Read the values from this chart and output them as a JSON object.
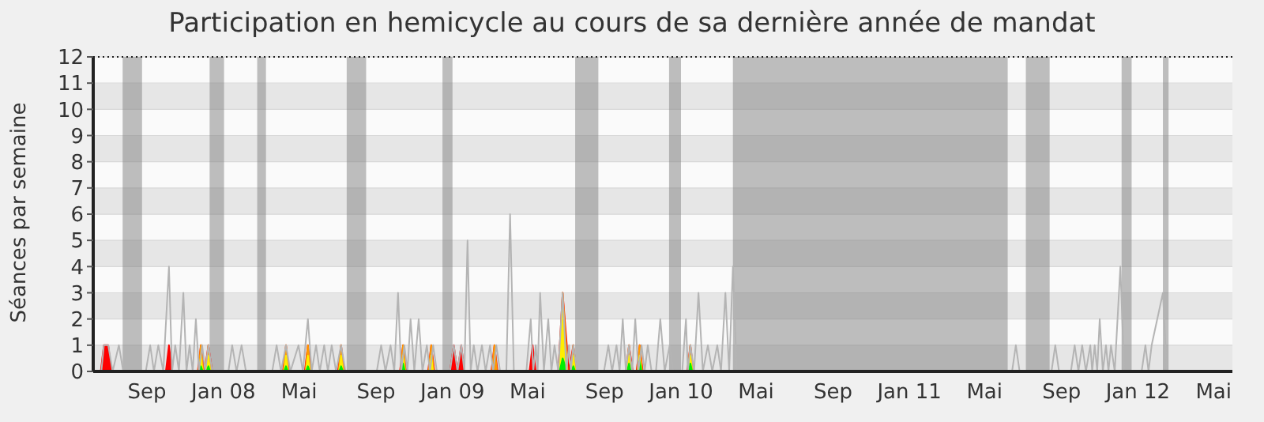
{
  "chart_data": {
    "type": "line",
    "title": "Participation en hemicycle au cours de sa dernière année de mandat",
    "ylabel": "Séances par semaine",
    "xlim": [
      "2007-06-07",
      "2012-05-31"
    ],
    "xticks": [
      {
        "value": "2007-09-01",
        "label": "Sep"
      },
      {
        "value": "2008-01-01",
        "label": "Jan 08"
      },
      {
        "value": "2008-05-01",
        "label": "Mai"
      },
      {
        "value": "2008-09-01",
        "label": "Sep"
      },
      {
        "value": "2009-01-01",
        "label": "Jan 09"
      },
      {
        "value": "2009-05-01",
        "label": "Mai"
      },
      {
        "value": "2009-09-01",
        "label": "Sep"
      },
      {
        "value": "2010-01-01",
        "label": "Jan 10"
      },
      {
        "value": "2010-05-01",
        "label": "Mai"
      },
      {
        "value": "2010-09-01",
        "label": "Sep"
      },
      {
        "value": "2011-01-01",
        "label": "Jan 11"
      },
      {
        "value": "2011-05-01",
        "label": "Mai"
      },
      {
        "value": "2011-09-01",
        "label": "Sep"
      },
      {
        "value": "2012-01-01",
        "label": "Jan 12"
      },
      {
        "value": "2012-05-01",
        "label": "Mai"
      }
    ],
    "ylim": [
      0,
      12
    ],
    "yticks": [
      0,
      1,
      2,
      3,
      4,
      5,
      6,
      7,
      8,
      9,
      10,
      11,
      12
    ],
    "grid": "y",
    "legend": false,
    "marker": "none",
    "bands": [
      {
        "axis": "x",
        "from": "2007-07-24",
        "to": "2007-08-24",
        "color": "#808080"
      },
      {
        "axis": "x",
        "from": "2007-12-10",
        "to": "2008-01-02",
        "color": "#808080"
      },
      {
        "axis": "x",
        "from": "2008-02-24",
        "to": "2008-03-09",
        "color": "#808080"
      },
      {
        "axis": "x",
        "from": "2008-07-16",
        "to": "2008-08-16",
        "color": "#808080"
      },
      {
        "axis": "x",
        "from": "2008-12-16",
        "to": "2009-01-01",
        "color": "#808080"
      },
      {
        "axis": "x",
        "from": "2009-07-16",
        "to": "2009-08-22",
        "color": "#808080"
      },
      {
        "axis": "x",
        "from": "2009-12-13",
        "to": "2010-01-01",
        "color": "#808080"
      },
      {
        "axis": "x",
        "from": "2010-03-25",
        "to": "2011-06-07",
        "color": "#808080"
      },
      {
        "axis": "x",
        "from": "2011-07-06",
        "to": "2011-08-13",
        "color": "#808080"
      },
      {
        "axis": "x",
        "from": "2011-12-06",
        "to": "2011-12-22",
        "color": "#808080"
      },
      {
        "axis": "x",
        "from": "2012-02-10",
        "to": "2012-02-19",
        "color": "#808080"
      }
    ],
    "series": [
      {
        "color": "#b4b4b4",
        "x": [
          "2007-06-07",
          "2007-06-20",
          "2007-06-24",
          "2007-07-01",
          "2007-07-08",
          "2007-07-18",
          "2007-07-25",
          "2007-08-30",
          "2007-09-06",
          "2007-09-12",
          "2007-09-19",
          "2007-09-27",
          "2007-10-06",
          "2007-10-11",
          "2007-10-16",
          "2007-10-22",
          "2007-10-29",
          "2007-11-03",
          "2007-11-08",
          "2007-11-13",
          "2007-11-18",
          "2007-11-23",
          "2007-11-28",
          "2007-12-03",
          "2007-12-08",
          "2007-12-14",
          "2008-01-09",
          "2008-01-15",
          "2008-01-22",
          "2008-01-30",
          "2008-02-06",
          "2008-03-19",
          "2008-03-26",
          "2008-04-02",
          "2008-04-10",
          "2008-04-17",
          "2008-04-30",
          "2008-05-07",
          "2008-05-15",
          "2008-05-21",
          "2008-05-28",
          "2008-06-03",
          "2008-06-10",
          "2008-06-16",
          "2008-06-22",
          "2008-06-29",
          "2008-07-07",
          "2008-07-14",
          "2008-09-02",
          "2008-09-09",
          "2008-09-16",
          "2008-09-24",
          "2008-09-30",
          "2008-10-06",
          "2008-10-11",
          "2008-10-16",
          "2008-10-21",
          "2008-10-26",
          "2008-11-01",
          "2008-11-08",
          "2008-11-14",
          "2008-11-21",
          "2008-11-26",
          "2008-12-01",
          "2008-12-07",
          "2008-12-28",
          "2009-01-03",
          "2009-01-09",
          "2009-01-15",
          "2009-01-20",
          "2009-01-25",
          "2009-01-30",
          "2009-02-04",
          "2009-02-10",
          "2009-02-17",
          "2009-02-23",
          "2009-03-02",
          "2009-03-07",
          "2009-03-12",
          "2009-03-18",
          "2009-03-28",
          "2009-04-03",
          "2009-04-09",
          "2009-04-29",
          "2009-05-06",
          "2009-05-10",
          "2009-05-14",
          "2009-05-17",
          "2009-05-21",
          "2009-05-27",
          "2009-06-03",
          "2009-06-08",
          "2009-06-13",
          "2009-06-19",
          "2009-06-26",
          "2009-07-02",
          "2009-07-06",
          "2009-07-09",
          "2009-07-13",
          "2009-07-19",
          "2009-08-31",
          "2009-09-07",
          "2009-09-13",
          "2009-09-20",
          "2009-09-25",
          "2009-09-30",
          "2009-10-05",
          "2009-10-10",
          "2009-10-15",
          "2009-10-20",
          "2009-10-25",
          "2009-10-30",
          "2009-11-04",
          "2009-11-09",
          "2009-11-15",
          "2009-11-22",
          "2009-11-29",
          "2009-12-06",
          "2009-12-14",
          "2009-12-20",
          "2010-01-03",
          "2010-01-09",
          "2010-01-12",
          "2010-01-16",
          "2010-01-22",
          "2010-01-29",
          "2010-02-05",
          "2010-02-13",
          "2010-02-20",
          "2010-02-28",
          "2010-03-06",
          "2010-03-13",
          "2010-03-19",
          "2010-03-25",
          "2010-03-31",
          "2011-06-14",
          "2011-06-20",
          "2011-06-26",
          "2011-08-16",
          "2011-08-22",
          "2011-08-28",
          "2011-09-16",
          "2011-09-22",
          "2011-09-28",
          "2011-10-04",
          "2011-10-10",
          "2011-10-17",
          "2011-10-20",
          "2011-10-24",
          "2011-10-28",
          "2011-11-01",
          "2011-11-06",
          "2011-11-11",
          "2011-11-15",
          "2011-11-19",
          "2011-11-25",
          "2011-12-04",
          "2011-12-10",
          "2012-01-07",
          "2012-01-13",
          "2012-01-18",
          "2012-01-23",
          "2012-02-10",
          "2012-02-16",
          "2012-05-31"
        ],
        "values": [
          0,
          0,
          1,
          1,
          0,
          1,
          0,
          0,
          1,
          0,
          1,
          0,
          4,
          0,
          1,
          0,
          3,
          0,
          1,
          0,
          2,
          0,
          1,
          0,
          1,
          0,
          0,
          1,
          0,
          1,
          0,
          0,
          1,
          0,
          1,
          0,
          1,
          0,
          2,
          0,
          1,
          0,
          1,
          0,
          1,
          0,
          1,
          0,
          0,
          1,
          0,
          1,
          0,
          3,
          0,
          1,
          0,
          2,
          0,
          2,
          0,
          1,
          0,
          1,
          0,
          0,
          1,
          0,
          1,
          0,
          5,
          0,
          1,
          0,
          1,
          0,
          1,
          0,
          1,
          0,
          0,
          6,
          0,
          0,
          2,
          0,
          1,
          0,
          3,
          0,
          2,
          0,
          1,
          0,
          3,
          0,
          1,
          0,
          1,
          0,
          0,
          1,
          0,
          1,
          0,
          2,
          0,
          1,
          0,
          2,
          0,
          1,
          0,
          1,
          0,
          0,
          2,
          0,
          1,
          0,
          0,
          2,
          0,
          1,
          0,
          3,
          0,
          1,
          0,
          1,
          0,
          3,
          0,
          4,
          0,
          0,
          1,
          0,
          0,
          1,
          0,
          0,
          1,
          0,
          1,
          0,
          1,
          0,
          1,
          0,
          2,
          0,
          1,
          0,
          1,
          0,
          4,
          0,
          0,
          1,
          0,
          1,
          3,
          0,
          0
        ]
      },
      {
        "type": "area",
        "color": "#ff0000",
        "x": [
          "2007-06-19",
          "2007-06-24",
          "2007-07-01",
          "2007-07-06",
          "2007-10-01",
          "2007-10-06",
          "2007-10-11",
          "2007-11-21",
          "2007-11-26",
          "2007-12-02",
          "2007-12-08",
          "2007-12-14",
          "2008-04-05",
          "2008-04-10",
          "2008-04-15",
          "2008-05-10",
          "2008-05-15",
          "2008-05-20",
          "2008-07-02",
          "2008-07-07",
          "2008-07-12",
          "2008-10-09",
          "2008-10-14",
          "2008-10-19",
          "2008-11-23",
          "2008-11-28",
          "2008-12-03",
          "2008-12-28",
          "2009-01-03",
          "2009-01-09",
          "2009-01-15",
          "2009-01-20",
          "2009-03-04",
          "2009-03-09",
          "2009-03-14",
          "2009-05-04",
          "2009-05-09",
          "2009-05-14",
          "2009-06-19",
          "2009-06-26",
          "2009-07-06",
          "2009-07-13",
          "2009-07-18",
          "2009-10-05",
          "2009-10-10",
          "2009-10-16",
          "2009-10-22",
          "2009-10-27",
          "2009-11-01",
          "2010-01-11",
          "2010-01-16",
          "2010-01-21"
        ],
        "values": [
          0,
          1,
          1,
          0,
          0,
          1,
          0,
          0,
          1,
          0,
          1,
          0,
          0,
          1,
          0,
          0,
          1,
          0,
          0,
          1,
          0,
          0,
          1,
          0,
          0,
          1,
          0,
          0,
          1,
          0,
          1,
          0,
          0,
          1,
          0,
          0,
          1,
          0,
          0,
          3,
          0,
          1,
          0,
          0,
          1,
          0,
          0,
          1,
          0,
          0,
          1,
          0
        ]
      },
      {
        "type": "area",
        "color": "#ff9900",
        "x": [
          "2007-11-22",
          "2007-11-26",
          "2007-11-30",
          "2007-12-04",
          "2007-12-08",
          "2007-12-12",
          "2008-04-06",
          "2008-04-10",
          "2008-04-14",
          "2008-05-11",
          "2008-05-15",
          "2008-05-19",
          "2008-07-03",
          "2008-07-07",
          "2008-07-11",
          "2008-10-10",
          "2008-10-14",
          "2008-10-18",
          "2008-11-24",
          "2008-11-28",
          "2008-12-02",
          "2009-03-05",
          "2009-03-09",
          "2009-03-13",
          "2009-06-20",
          "2009-06-26",
          "2009-07-04",
          "2009-07-09",
          "2009-07-13",
          "2009-07-17",
          "2009-10-06",
          "2009-10-10",
          "2009-10-14",
          "2009-10-23",
          "2009-10-27",
          "2009-10-31",
          "2010-01-12",
          "2010-01-16",
          "2010-01-20"
        ],
        "values": [
          0,
          1,
          0,
          0,
          1,
          0,
          0,
          1,
          0,
          0,
          1,
          0,
          0,
          1,
          0,
          0,
          1,
          0,
          0,
          1,
          0,
          0,
          1,
          0,
          0,
          3,
          0,
          0,
          1,
          0,
          0,
          1,
          0,
          0,
          1,
          0,
          0,
          1,
          0
        ]
      },
      {
        "type": "area",
        "color": "#ffee00",
        "x": [
          "2007-11-23",
          "2007-11-26",
          "2007-11-29",
          "2007-12-05",
          "2007-12-08",
          "2007-12-11",
          "2008-04-07",
          "2008-04-10",
          "2008-04-13",
          "2008-05-12",
          "2008-05-15",
          "2008-05-18",
          "2008-07-04",
          "2008-07-07",
          "2008-07-10",
          "2008-10-11",
          "2008-10-14",
          "2008-10-17",
          "2008-11-25",
          "2008-11-28",
          "2008-12-01",
          "2009-06-21",
          "2009-06-26",
          "2009-07-03",
          "2009-07-10",
          "2009-07-13",
          "2009-07-16",
          "2009-10-07",
          "2009-10-10",
          "2009-10-13",
          "2009-10-24",
          "2009-10-27",
          "2009-10-30",
          "2010-01-13",
          "2010-01-16",
          "2010-01-19"
        ],
        "values": [
          0,
          0.6,
          0,
          0,
          0.6,
          0,
          0,
          0.6,
          0,
          0,
          0.6,
          0,
          0,
          0.6,
          0,
          0,
          0.6,
          0,
          0,
          0.6,
          0,
          0,
          2.5,
          0,
          0,
          0.6,
          0,
          0,
          0.6,
          0,
          0,
          0.6,
          0,
          0,
          0.6,
          0
        ]
      },
      {
        "type": "area",
        "color": "#00ee00",
        "x": [
          "2007-11-23",
          "2007-11-26",
          "2007-11-29",
          "2007-12-05",
          "2007-12-08",
          "2007-12-11",
          "2008-04-07",
          "2008-04-10",
          "2008-04-13",
          "2008-05-12",
          "2008-05-15",
          "2008-05-18",
          "2008-07-04",
          "2008-07-07",
          "2008-07-10",
          "2008-10-11",
          "2008-10-14",
          "2008-10-17",
          "2009-06-21",
          "2009-06-26",
          "2009-07-03",
          "2009-07-10",
          "2009-07-13",
          "2009-07-16",
          "2009-10-07",
          "2009-10-10",
          "2009-10-13",
          "2009-10-24",
          "2009-10-27",
          "2009-10-30",
          "2010-01-13",
          "2010-01-16",
          "2010-01-19"
        ],
        "values": [
          0,
          0.2,
          0,
          0,
          0.2,
          0,
          0,
          0.2,
          0,
          0,
          0.2,
          0,
          0,
          0.2,
          0,
          0,
          0.3,
          0,
          0,
          0.5,
          0,
          0,
          0.2,
          0,
          0,
          0.3,
          0,
          0,
          0.4,
          0,
          0,
          0.3,
          0
        ]
      }
    ]
  }
}
